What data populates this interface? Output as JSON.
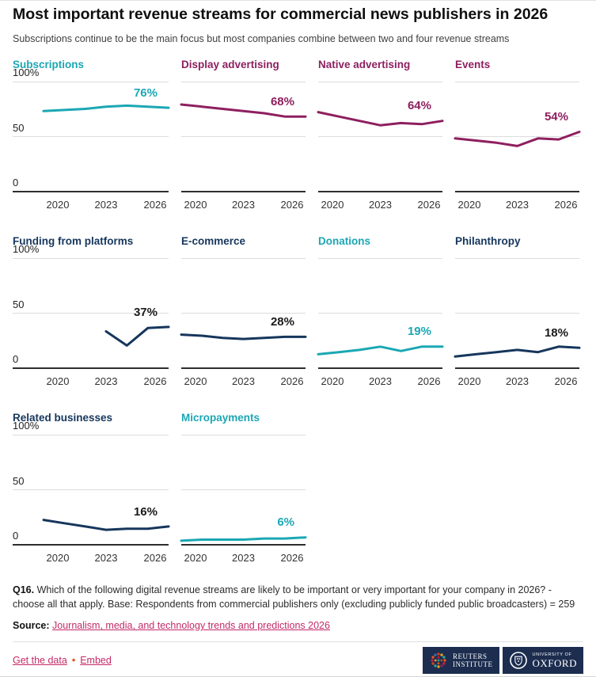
{
  "header": {
    "title": "Most important revenue streams for commercial news publishers in 2026",
    "subtitle": "Subscriptions continue to be the main focus but most companies combine between two and four revenue streams"
  },
  "colors": {
    "teal": "#1BA7B4",
    "purple": "#8E1F5F",
    "navy": "#16365C",
    "dark": "#1A1A1A",
    "link": "#C42A66",
    "bullet": "#E0592B",
    "logo_bg": "#1C2D4F"
  },
  "chart_data": {
    "type": "line",
    "small_multiples": true,
    "x_domain": [
      2020,
      2026
    ],
    "x_tick_years": [
      2020,
      2023,
      2026
    ],
    "x_tick_labels": [
      "2020",
      "2023",
      "2026"
    ],
    "ylim": [
      0,
      100
    ],
    "y_tick_labels": [
      "100%",
      "50",
      "0"
    ],
    "grid": "horizontal-only",
    "series": [
      {
        "name": "Subscriptions",
        "color": "teal",
        "label_color": "teal",
        "end_label": "76%",
        "x": [
          2020,
          2021,
          2022,
          2023,
          2024,
          2025,
          2026
        ],
        "values": [
          73,
          74,
          75,
          77,
          78,
          77,
          76
        ]
      },
      {
        "name": "Display advertising",
        "color": "purple",
        "label_color": "purple",
        "end_label": "68%",
        "x": [
          2020,
          2021,
          2022,
          2023,
          2024,
          2025,
          2026
        ],
        "values": [
          79,
          77,
          75,
          73,
          71,
          68,
          68
        ]
      },
      {
        "name": "Native advertising",
        "color": "purple",
        "label_color": "purple",
        "end_label": "64%",
        "x": [
          2020,
          2021,
          2022,
          2023,
          2024,
          2025,
          2026
        ],
        "values": [
          72,
          68,
          64,
          60,
          62,
          61,
          64
        ]
      },
      {
        "name": "Events",
        "color": "purple",
        "label_color": "purple",
        "end_label": "54%",
        "x": [
          2020,
          2021,
          2022,
          2023,
          2024,
          2025,
          2026
        ],
        "values": [
          48,
          46,
          44,
          41,
          48,
          47,
          54
        ]
      },
      {
        "name": "Funding from platforms",
        "color": "navy",
        "label_color": "dark",
        "end_label": "37%",
        "x": [
          2023,
          2024,
          2025,
          2026
        ],
        "values": [
          33,
          20,
          36,
          37
        ]
      },
      {
        "name": "E-commerce",
        "color": "navy",
        "label_color": "dark",
        "end_label": "28%",
        "x": [
          2020,
          2021,
          2022,
          2023,
          2024,
          2025,
          2026
        ],
        "values": [
          30,
          29,
          27,
          26,
          27,
          28,
          28
        ]
      },
      {
        "name": "Donations",
        "color": "teal",
        "label_color": "teal",
        "end_label": "19%",
        "x": [
          2020,
          2021,
          2022,
          2023,
          2024,
          2025,
          2026
        ],
        "values": [
          12,
          14,
          16,
          19,
          15,
          19,
          19
        ]
      },
      {
        "name": "Philanthropy",
        "color": "navy",
        "label_color": "dark",
        "end_label": "18%",
        "x": [
          2020,
          2021,
          2022,
          2023,
          2024,
          2025,
          2026
        ],
        "values": [
          10,
          12,
          14,
          16,
          14,
          19,
          18
        ]
      },
      {
        "name": "Related businesses",
        "color": "navy",
        "label_color": "dark",
        "end_label": "16%",
        "x": [
          2020,
          2021,
          2022,
          2023,
          2024,
          2025,
          2026
        ],
        "values": [
          22,
          19,
          16,
          13,
          14,
          14,
          16
        ]
      },
      {
        "name": "Micropayments",
        "color": "teal",
        "label_color": "teal",
        "end_label": "6%",
        "x": [
          2020,
          2021,
          2022,
          2023,
          2024,
          2025,
          2026
        ],
        "values": [
          3,
          4,
          4,
          4,
          5,
          5,
          6
        ]
      }
    ]
  },
  "footer": {
    "question_label": "Q16.",
    "question_text": " Which of the following digital revenue streams are likely to be important or very important for your company in 2026? - choose all that apply. Base: Respondents from commercial publishers only (excluding publicly funded public broadcasters) = 259",
    "source_label": "Source:",
    "source_link_text": "Journalism, media, and technology trends and predictions 2026",
    "get_data_label": "Get the data",
    "links_separator": "•",
    "embed_label": "Embed",
    "logos": [
      {
        "name": "Reuters Institute",
        "line1": "REUTERS",
        "line2": "INSTITUTE"
      },
      {
        "name": "University of Oxford",
        "line1": "UNIVERSITY OF",
        "line2": "OXFORD"
      }
    ]
  }
}
